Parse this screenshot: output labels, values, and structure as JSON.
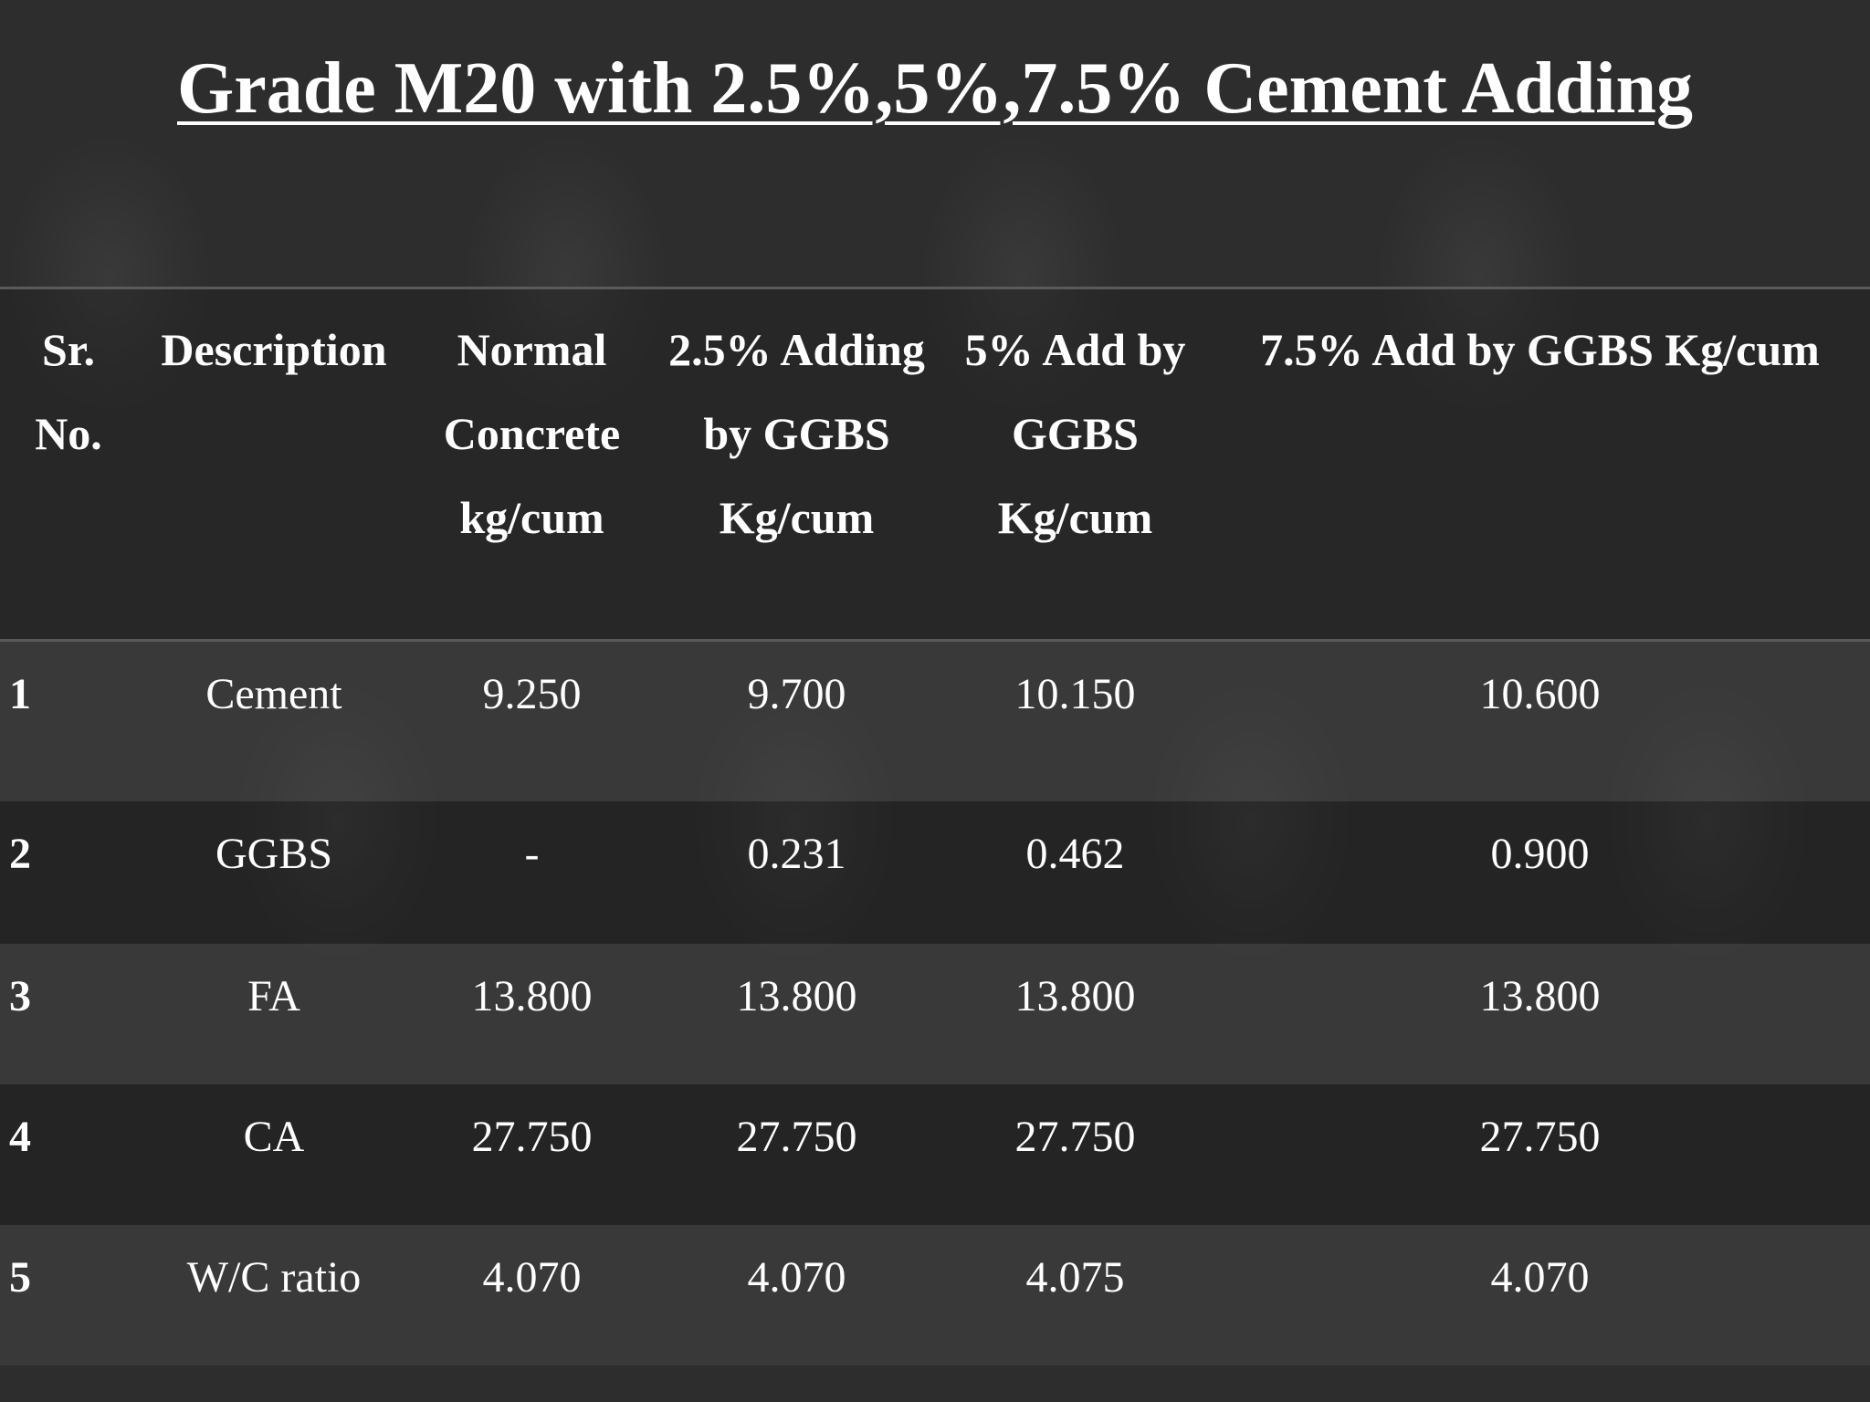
{
  "title": "Grade M20 with 2.5%,5%,7.5% Cement Adding",
  "table": {
    "headers": [
      "Sr. No.",
      "Description",
      "Normal Concrete kg/cum",
      "2.5% Adding by GGBS Kg/cum",
      "5% Add by GGBS Kg/cum",
      "7.5% Add by GGBS Kg/cum"
    ],
    "rows": [
      [
        "1",
        "Cement",
        "9.250",
        "9.700",
        "10.150",
        "10.600"
      ],
      [
        "2",
        "GGBS",
        "-",
        "0.231",
        "0.462",
        "0.900"
      ],
      [
        "3",
        "FA",
        "13.800",
        "13.800",
        "13.800",
        "13.800"
      ],
      [
        "4",
        "CA",
        "27.750",
        "27.750",
        "27.750",
        "27.750"
      ],
      [
        "5",
        "W/C ratio",
        "4.070",
        "4.070",
        "4.075",
        "4.070"
      ]
    ]
  }
}
